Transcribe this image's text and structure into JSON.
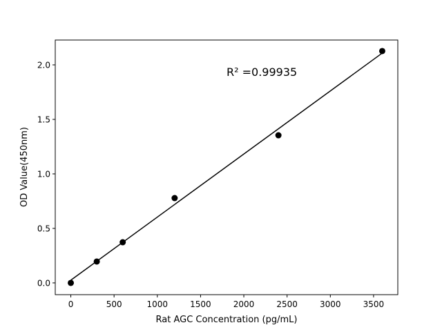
{
  "chart_data": {
    "type": "scatter",
    "title": "",
    "xlabel": "Rat AGC Concentration (pg/mL)",
    "ylabel": "OD Value(450nm)",
    "xlim": [
      -180,
      3780
    ],
    "ylim": [
      -0.108,
      2.228
    ],
    "xticks": [
      0,
      500,
      1000,
      1500,
      2000,
      2500,
      3000,
      3500
    ],
    "yticks": [
      0.0,
      0.5,
      1.0,
      1.5,
      2.0
    ],
    "xtick_labels": [
      "0",
      "500",
      "1000",
      "1500",
      "2000",
      "2500",
      "3000",
      "3500"
    ],
    "ytick_labels": [
      "0.0",
      "0.5",
      "1.0",
      "1.5",
      "2.0"
    ],
    "grid": false,
    "points": {
      "x": [
        0,
        300,
        600,
        1200,
        2400,
        3600
      ],
      "y": [
        0.0,
        0.196,
        0.373,
        0.778,
        1.354,
        2.127
      ],
      "color": "#000000"
    },
    "fit_line": {
      "x": [
        0,
        3600
      ],
      "y": [
        0.025,
        2.108
      ],
      "color": "#000000"
    },
    "annotation": {
      "text": "R² =0.99935",
      "x": 1800,
      "y": 1.9
    }
  }
}
